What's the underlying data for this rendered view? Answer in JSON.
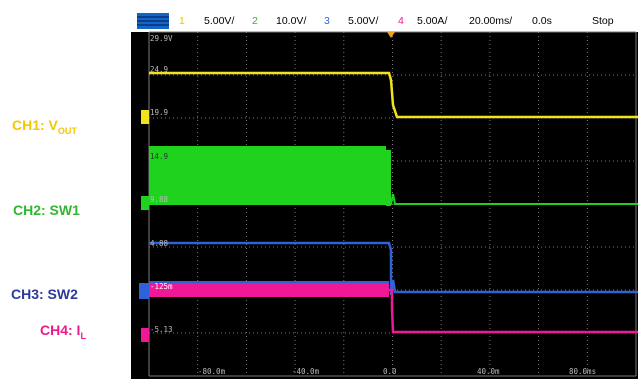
{
  "channel_labels": {
    "ch1": {
      "text": "CH1: V",
      "sub": "OUT",
      "color": "#f7c600"
    },
    "ch2": {
      "text": "CH2: SW1",
      "color": "#2fb82f"
    },
    "ch3": {
      "text": "CH3: SW2",
      "color": "#2b3a9c"
    },
    "ch4": {
      "text": "CH4: I",
      "sub": "L",
      "color": "#ef1a8a"
    }
  },
  "status_bar": {
    "ch1_num": "1",
    "ch1_scale": "5.00V/",
    "ch2_num": "2",
    "ch2_scale": "10.0V/",
    "ch3_num": "3",
    "ch3_scale": "5.00V/",
    "ch4_num": "4",
    "ch4_scale": "5.00A/",
    "timebase": "20.00ms/",
    "delay": "0.0s",
    "run_state": "Stop"
  },
  "y_labels": [
    "29.9V",
    "24.9",
    "19.9",
    "14.9",
    "9.88",
    "4.88",
    "-125m",
    "-5.13"
  ],
  "x_labels": [
    "-80.0m",
    "-40.0m",
    "0.0",
    "40.0m",
    "80.0ms"
  ],
  "colors": {
    "ch1": "#f2e31a",
    "ch2": "#1ed21e",
    "ch3": "#2f62d8",
    "ch4": "#f01896",
    "grid": "#7a7a7a",
    "trigger": "#f0a020"
  },
  "chart_data": {
    "type": "line",
    "title": "",
    "xlabel": "",
    "ylabel": "",
    "x_unit": "ms",
    "xlim": [
      -100,
      100
    ],
    "series": [
      {
        "name": "CH1: VOUT",
        "x": [
          -100,
          -2,
          -1,
          2,
          100
        ],
        "y": [
          24.9,
          24.9,
          24.0,
          21.5,
          21.5
        ]
      },
      {
        "name": "CH2: SW1",
        "x": [
          -100,
          -2,
          0,
          100
        ],
        "y": [
          12.8,
          12.8,
          9.88,
          9.88
        ]
      },
      {
        "name": "CH3: SW2",
        "x": [
          -100,
          0,
          0.1,
          100
        ],
        "y": [
          4.88,
          4.88,
          -0.125,
          -0.125
        ]
      },
      {
        "name": "CH4: IL",
        "x": [
          -100,
          0,
          0.5,
          100
        ],
        "y": [
          0.0,
          0.0,
          -5.13,
          -5.13
        ]
      }
    ]
  }
}
